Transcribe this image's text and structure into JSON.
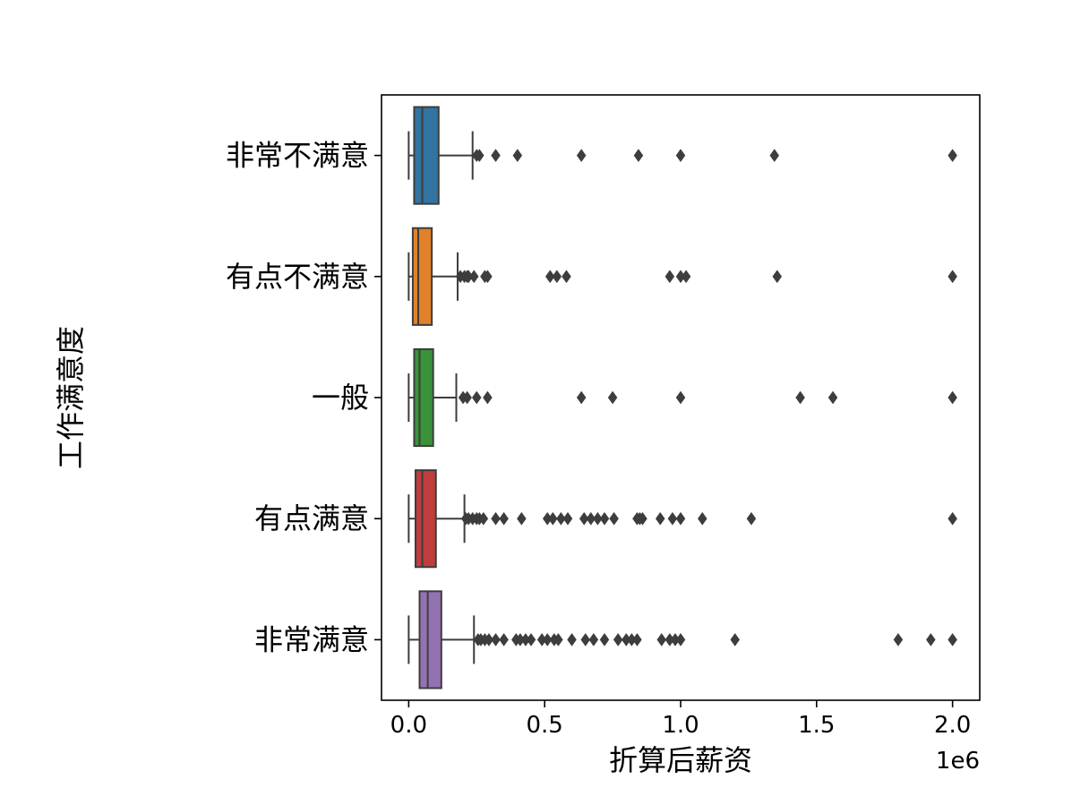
{
  "chart_data": {
    "type": "boxplot",
    "orientation": "horizontal",
    "xlabel": "折算后薪资",
    "ylabel": "工作满意度",
    "x_offset_text": "1e6",
    "x_scale_factor": 1000000,
    "xlim": [
      -0.1,
      2.1
    ],
    "xticks": [
      0.0,
      0.5,
      1.0,
      1.5,
      2.0
    ],
    "xtick_labels": [
      "0.0",
      "0.5",
      "1.0",
      "1.5",
      "2.0"
    ],
    "grid": false,
    "categories": [
      "非常不满意",
      "有点不满意",
      "一般",
      "有点满意",
      "非常满意"
    ],
    "series": [
      {
        "category": "非常不满意",
        "color": "#3274a1",
        "whisker_low": 0.0,
        "q1": 0.02,
        "median": 0.05,
        "q3": 0.11,
        "whisker_high": 0.235,
        "outliers": [
          0.25,
          0.26,
          0.32,
          0.4,
          0.635,
          0.845,
          1.0,
          1.345,
          2.0
        ]
      },
      {
        "category": "有点不满意",
        "color": "#e1812c",
        "whisker_low": 0.0,
        "q1": 0.015,
        "median": 0.035,
        "q3": 0.085,
        "whisker_high": 0.18,
        "outliers": [
          0.19,
          0.205,
          0.215,
          0.22,
          0.24,
          0.28,
          0.29,
          0.52,
          0.545,
          0.58,
          0.96,
          1.0,
          1.02,
          1.355,
          2.0
        ]
      },
      {
        "category": "一般",
        "color": "#3a923a",
        "whisker_low": 0.0,
        "q1": 0.02,
        "median": 0.04,
        "q3": 0.09,
        "whisker_high": 0.175,
        "outliers": [
          0.2,
          0.215,
          0.25,
          0.29,
          0.635,
          0.75,
          1.0,
          1.44,
          1.56,
          2.0
        ]
      },
      {
        "category": "有点满意",
        "color": "#c03d3e",
        "whisker_low": 0.0,
        "q1": 0.025,
        "median": 0.05,
        "q3": 0.1,
        "whisker_high": 0.205,
        "outliers": [
          0.21,
          0.22,
          0.235,
          0.25,
          0.26,
          0.275,
          0.32,
          0.35,
          0.415,
          0.51,
          0.53,
          0.56,
          0.585,
          0.645,
          0.67,
          0.695,
          0.72,
          0.755,
          0.84,
          0.85,
          0.86,
          0.925,
          0.97,
          1.0,
          1.08,
          1.26,
          2.0
        ]
      },
      {
        "category": "非常满意",
        "color": "#9372b2",
        "whisker_low": 0.0,
        "q1": 0.04,
        "median": 0.07,
        "q3": 0.12,
        "whisker_high": 0.24,
        "outliers": [
          0.255,
          0.265,
          0.28,
          0.295,
          0.32,
          0.35,
          0.395,
          0.41,
          0.43,
          0.45,
          0.49,
          0.51,
          0.535,
          0.55,
          0.6,
          0.65,
          0.68,
          0.72,
          0.77,
          0.8,
          0.82,
          0.84,
          0.93,
          0.96,
          0.98,
          1.0,
          1.2,
          1.8,
          1.92,
          2.0
        ]
      }
    ]
  }
}
